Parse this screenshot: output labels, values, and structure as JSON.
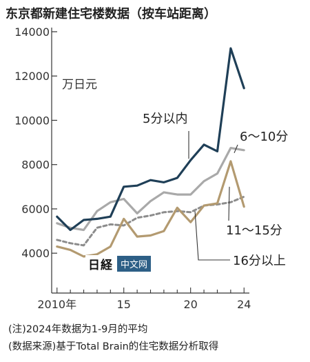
{
  "title": "东京都新建住宅楼数据（按车站距离）",
  "unit_label": "万日元",
  "notes": {
    "note1": "(注)2024年数据为1-9月的平均",
    "note2": "(数据来源)基于Total Brain的住宅数据分析取得"
  },
  "watermark": {
    "logo_text": "日経",
    "badge_text": "中文网"
  },
  "colors": {
    "series1": "#1f3f57",
    "series2": "#a9a9a9",
    "series3": "#b39a70",
    "series4": "#8c8c8c"
  },
  "chart_data": {
    "type": "line",
    "x": [
      2010,
      2011,
      2012,
      2013,
      2014,
      2015,
      2016,
      2017,
      2018,
      2019,
      2020,
      2021,
      2022,
      2023,
      2024
    ],
    "x_tick_labels": [
      "2010年",
      "15",
      "20",
      "24"
    ],
    "x_ticks": [
      2010,
      2015,
      2020,
      2024
    ],
    "y_ticks": [
      4000,
      6000,
      8000,
      10000,
      12000,
      14000
    ],
    "y_tick_labels": [
      "4000",
      "6000",
      "8000",
      "10000",
      "12000",
      "14000"
    ],
    "ylim": [
      2200,
      14000
    ],
    "xlim": [
      2009.6,
      2024.4
    ],
    "grid": false,
    "series": [
      {
        "name": "5分以内",
        "style": "solid",
        "color": "#1f3f57",
        "values": [
          5650,
          5050,
          5500,
          5550,
          5650,
          7000,
          7050,
          7300,
          7200,
          7400,
          8200,
          8900,
          8600,
          13250,
          11450
        ]
      },
      {
        "name": "6～10分",
        "style": "solid",
        "color": "#a9a9a9",
        "values": [
          5350,
          5150,
          5050,
          5900,
          6300,
          6450,
          5800,
          6350,
          6750,
          6650,
          6650,
          7250,
          7600,
          8750,
          8650
        ]
      },
      {
        "name": "11～15分",
        "style": "solid",
        "color": "#b39a70",
        "values": [
          4300,
          4150,
          3850,
          3950,
          4300,
          5550,
          4750,
          4800,
          5000,
          6050,
          5400,
          6150,
          6250,
          8150,
          6100
        ]
      },
      {
        "name": "16分以上",
        "style": "dashed",
        "color": "#8c8c8c",
        "values": [
          4600,
          4450,
          4350,
          5150,
          5300,
          5250,
          5600,
          5700,
          5850,
          5900,
          5850,
          6150,
          6200,
          6300,
          6550
        ]
      }
    ]
  }
}
